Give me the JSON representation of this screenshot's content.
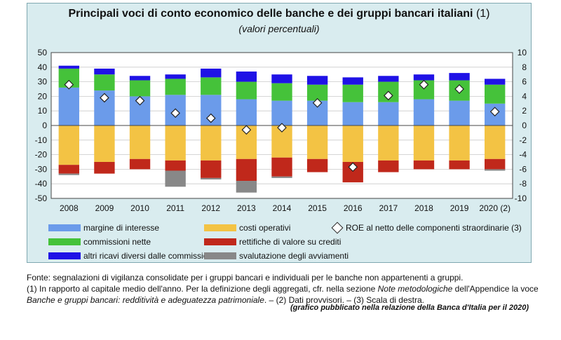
{
  "title_main": "Principali voci di conto economico delle banche e dei gruppi bancari italiani",
  "title_note": "(1)",
  "subtitle": "(valori percentuali)",
  "colors": {
    "margine": "#6b9bea",
    "costi": "#f3c344",
    "commissioni": "#45c23a",
    "rettifiche": "#c0281b",
    "altri": "#1f12e6",
    "svalutazione": "#888888"
  },
  "chart_data": {
    "type": "bar",
    "stacked": true,
    "categories": [
      "2008",
      "2009",
      "2010",
      "2011",
      "2012",
      "2013",
      "2014",
      "2015",
      "2016",
      "2017",
      "2018",
      "2019",
      "2020 (2)"
    ],
    "ylim": [
      -50,
      50
    ],
    "yticks": [
      -50,
      -40,
      -30,
      -20,
      -10,
      0,
      10,
      20,
      30,
      40,
      50
    ],
    "y2lim": [
      -10,
      10
    ],
    "y2ticks": [
      -10,
      -8,
      -6,
      -4,
      -2,
      0,
      2,
      4,
      6,
      8,
      10
    ],
    "y2label": "Scala di destra",
    "series": [
      {
        "name": "margine di interesse",
        "key": "margine",
        "values": [
          26,
          24,
          20,
          21,
          21,
          18,
          17,
          17,
          16,
          16,
          18,
          17,
          15
        ]
      },
      {
        "name": "commissioni nette",
        "key": "commissioni",
        "values": [
          13,
          11,
          11,
          11,
          12,
          12,
          12,
          11,
          12,
          14,
          13,
          14,
          13
        ]
      },
      {
        "name": "altri ricavi diversi dalle commissioni",
        "key": "altri",
        "values": [
          2,
          4,
          3,
          3,
          6,
          7,
          6,
          6,
          5,
          4,
          4,
          5,
          4
        ]
      },
      {
        "name": "costi operativi",
        "key": "costi",
        "values": [
          -27,
          -25,
          -23,
          -24,
          -24,
          -23,
          -22,
          -23,
          -25,
          -24,
          -24,
          -24,
          -23
        ]
      },
      {
        "name": "rettifiche di valore su crediti",
        "key": "rettifiche",
        "values": [
          -6,
          -8,
          -7,
          -7,
          -12,
          -15,
          -13,
          -9,
          -14,
          -8,
          -6,
          -6,
          -7
        ]
      },
      {
        "name": "svalutazione degli avviamenti",
        "key": "svalutazione",
        "values": [
          -1,
          0,
          0,
          -11,
          -1,
          -8,
          -1,
          0,
          0,
          0,
          0,
          0,
          -1
        ]
      }
    ],
    "roe_series": {
      "name": "ROE al netto delle componenti straordinarie (3)",
      "axis": "right",
      "values": [
        5.6,
        3.8,
        3.4,
        1.7,
        1.0,
        -0.6,
        -0.3,
        3.1,
        -5.7,
        4.1,
        5.6,
        5.0,
        1.9
      ]
    }
  },
  "legend": [
    {
      "label": "margine di interesse",
      "key": "margine"
    },
    {
      "label": "costi operativi",
      "key": "costi"
    },
    {
      "label": "ROE al netto delle componenti straordinarie (3)",
      "key": "roe"
    },
    {
      "label": "commissioni nette",
      "key": "commissioni"
    },
    {
      "label": "rettifiche di valore su crediti",
      "key": "rettifiche"
    },
    {
      "label": "altri ricavi diversi dalle commissioni",
      "key": "altri"
    },
    {
      "label": "svalutazione degli avviamenti",
      "key": "svalutazione"
    }
  ],
  "notes": {
    "line1": "Fonte: segnalazioni di vigilanza consolidate per i gruppi bancari e individuali per le banche non appartenenti a gruppi.",
    "line2_a": "(1) In rapporto al capitale medio dell'anno. Per la definizione degli aggregati, cfr. nella sezione ",
    "line2_b": "Note metodologiche",
    "line2_c": " dell'Appendice la voce",
    "line3_a": "Banche e gruppi bancari: redditività e adeguatezza patrimoniale",
    "line3_b": ". – (2) Dati provvisori. – (3) Scala di destra."
  },
  "credit": "(grafico pubblicato nella relazione della Banca d'Italia per il 2020)"
}
